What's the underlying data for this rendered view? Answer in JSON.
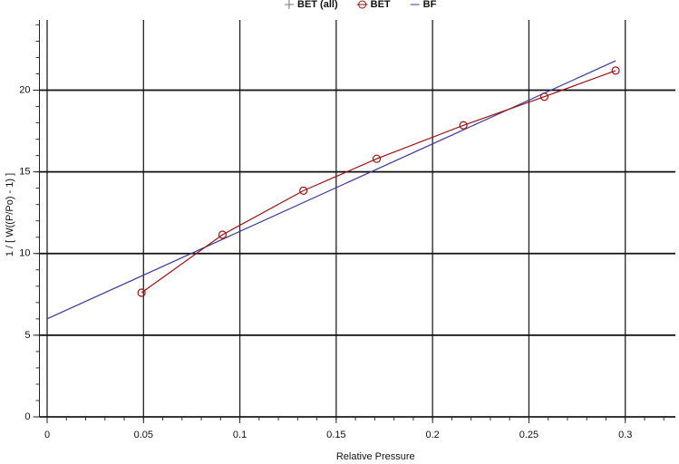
{
  "chart_data": {
    "type": "line",
    "x_label": "Relative Pressure",
    "y_label": "1 / [ W((P/Po) - 1) ]",
    "xlim": [
      -0.004,
      0.326
    ],
    "ylim": [
      0,
      24.3
    ],
    "xticks": [
      0,
      0.05,
      0.1,
      0.15,
      0.2,
      0.25,
      0.3
    ],
    "yticks": [
      0,
      5,
      10,
      15,
      20
    ],
    "grid": true,
    "legend": "top",
    "series": [
      {
        "name": "BET (all)",
        "color": "#777777",
        "marker": "plus",
        "x": [],
        "values": []
      },
      {
        "name": "BET",
        "color": "#a01010",
        "marker": "circle",
        "x": [
          0.049,
          0.091,
          0.133,
          0.171,
          0.216,
          0.258,
          0.295
        ],
        "values": [
          7.6,
          11.15,
          13.85,
          15.8,
          17.85,
          19.6,
          21.2
        ]
      },
      {
        "name": "BF",
        "color": "#3a3aa0",
        "marker": "none",
        "x": [
          0,
          0.295
        ],
        "values": [
          6.0,
          21.8
        ]
      }
    ]
  }
}
